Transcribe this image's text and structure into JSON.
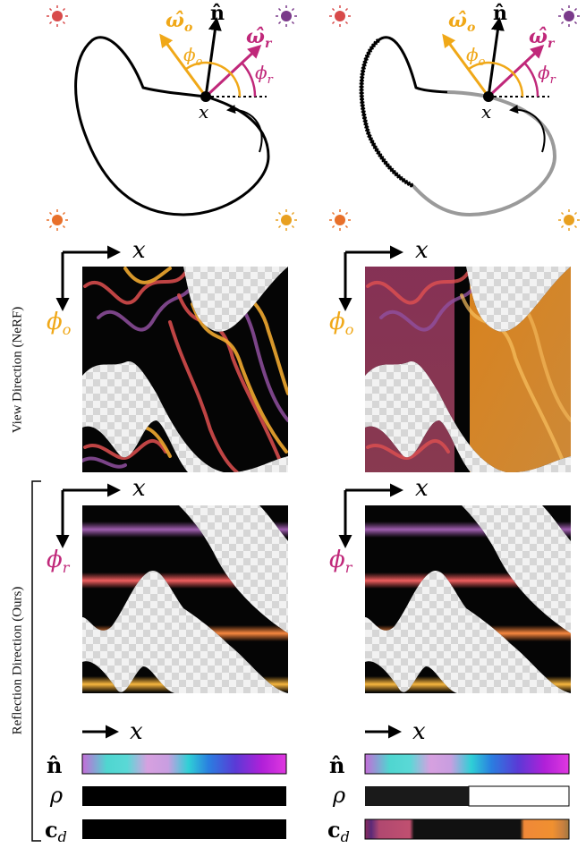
{
  "labels": {
    "normal": "n̂",
    "omega_o": "ω̂",
    "omega_o_sub": "o",
    "omega_r": "ω̂",
    "omega_r_sub": "r",
    "phi_o": "ϕ",
    "phi_o_sub": "o",
    "phi_r": "ϕ",
    "phi_r_sub": "r",
    "point": "x",
    "x_axis": "x",
    "rho": "ρ",
    "cd": "c",
    "cd_sub": "d"
  },
  "side_labels": {
    "view": "View Direction (NeRF)",
    "reflection": "Reflection Direction (Ours)"
  },
  "colors": {
    "view_dir": "#f0a818",
    "reflect_dir": "#c0287a",
    "sun_red": "#d84a4a",
    "sun_purple": "#7a3a8a",
    "sun_orange": "#e8702a",
    "sun_gold": "#e8a020",
    "band_purple": "#9050a0",
    "band_red": "#e05050",
    "band_orange": "#f07830",
    "band_gold": "#f0a830"
  }
}
